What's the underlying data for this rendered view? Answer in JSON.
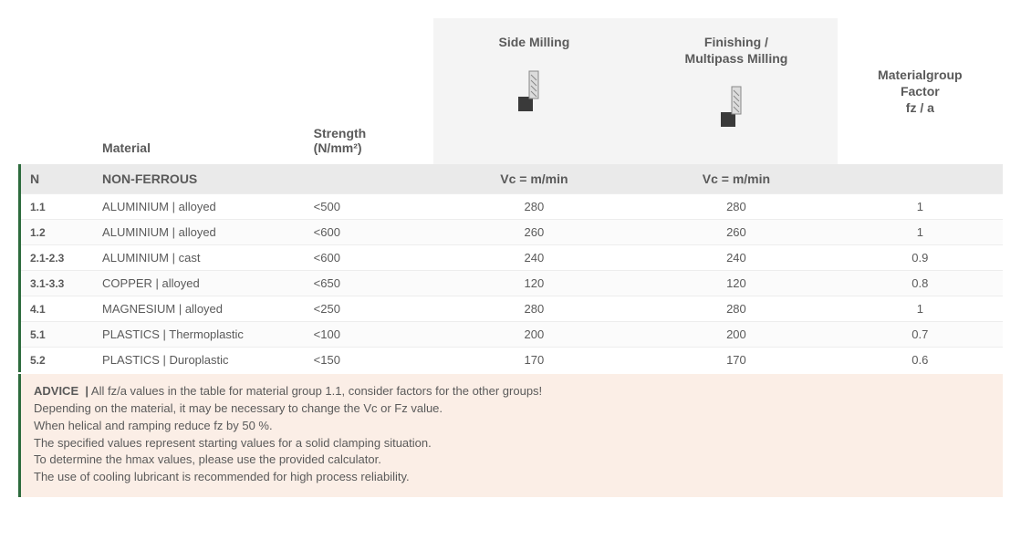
{
  "colors": {
    "accent": "#2d6b3d",
    "header_bg": "#f4f4f4",
    "cat_bg": "#eaeaea",
    "advice_bg": "#fbeee6",
    "text": "#5a5a5a",
    "row_border": "#ededed"
  },
  "columns": {
    "material": "Material",
    "strength": "Strength\n(N/mm²)",
    "side_milling": "Side Milling",
    "finishing": "Finishing /\nMultipass Milling",
    "factor": "Materialgroup\nFactor\nfz / a"
  },
  "category": {
    "code": "N",
    "name": "NON-FERROUS",
    "vc_label": "Vc = m/min"
  },
  "rows": [
    {
      "code": "1.1",
      "material": "ALUMINIUM |  alloyed",
      "strength": "<500",
      "side": "280",
      "fin": "280",
      "factor": "1"
    },
    {
      "code": "1.2",
      "material": "ALUMINIUM | alloyed",
      "strength": "<600",
      "side": "260",
      "fin": "260",
      "factor": "1"
    },
    {
      "code": "2.1-2.3",
      "material": "ALUMINIUM | cast",
      "strength": "<600",
      "side": "240",
      "fin": "240",
      "factor": "0.9"
    },
    {
      "code": "3.1-3.3",
      "material": "COPPER | alloyed",
      "strength": "<650",
      "side": "120",
      "fin": "120",
      "factor": "0.8"
    },
    {
      "code": "4.1",
      "material": "MAGNESIUM | alloyed",
      "strength": "<250",
      "side": "280",
      "fin": "280",
      "factor": "1"
    },
    {
      "code": "5.1",
      "material": "PLASTICS | Thermoplastic",
      "strength": "<100",
      "side": "200",
      "fin": "200",
      "factor": "0.7"
    },
    {
      "code": "5.2",
      "material": "PLASTICS | Duroplastic",
      "strength": "<150",
      "side": "170",
      "fin": "170",
      "factor": "0.6"
    }
  ],
  "advice": {
    "label": "ADVICE",
    "lines": [
      "All fz/a values in the table for material group 1.1, consider factors for the other groups!",
      "Depending on the material, it may be necessary to change the Vc or Fz value.",
      "When helical and ramping reduce fz by 50 %.",
      "The specified values represent starting values for a solid clamping situation.",
      "To determine the hmax values, please use the provided calculator.",
      "The use of cooling lubricant is recommended for high process reliability."
    ]
  },
  "icon": {
    "tool_fill": "#c9c9c9",
    "tool_stroke": "#5a5a5a",
    "block_fill": "#3a3a3a"
  }
}
